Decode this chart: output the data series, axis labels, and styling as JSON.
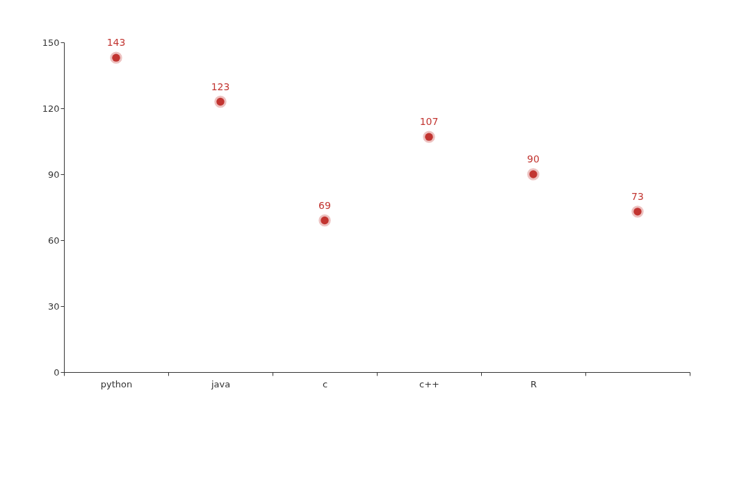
{
  "chart_data": {
    "type": "scatter",
    "categories": [
      "python",
      "java",
      "c",
      "c++",
      "R",
      null
    ],
    "values": [
      143,
      123,
      69,
      107,
      90,
      73
    ],
    "color": "#c23531",
    "ylim": [
      0,
      150
    ],
    "yticks": [
      0,
      30,
      60,
      90,
      120,
      150
    ],
    "data_labels": true,
    "marker": "circle"
  }
}
